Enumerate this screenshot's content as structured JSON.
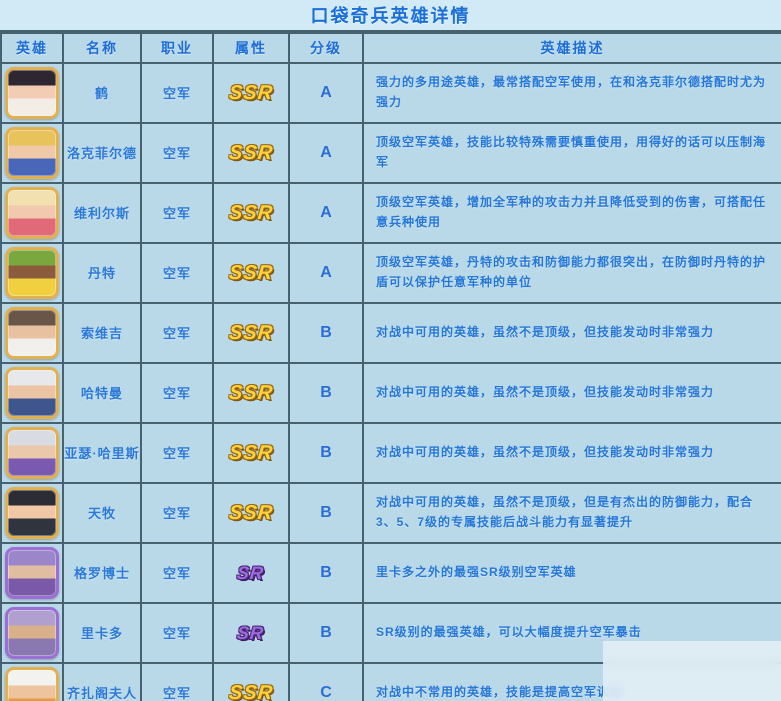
{
  "title": "口袋奇兵英雄详情",
  "table": {
    "headers": [
      "英雄",
      "名称",
      "职业",
      "属性",
      "分级",
      "英雄描述"
    ],
    "rows": [
      {
        "name": "鹤",
        "class": "空军",
        "rarity": "SSR",
        "grade": "A",
        "desc": "强力的多用途英雄，最常搭配空军使用，在和洛克菲尔德搭配时尤为强力",
        "avatar": "hero-crane",
        "avatar_border": "#e2b04e",
        "avatar_colors": [
          "#2e2630",
          "#f2cdb3",
          "#f3ede6"
        ]
      },
      {
        "name": "洛克菲尔德",
        "class": "空军",
        "rarity": "SSR",
        "grade": "A",
        "desc": "顶级空军英雄，技能比较特殊需要慎重使用，用得好的话可以压制海军",
        "avatar": "hero-rockefeller",
        "avatar_border": "#e2b04e",
        "avatar_colors": [
          "#e8c35c",
          "#f0c9a8",
          "#4a66b8"
        ]
      },
      {
        "name": "维利尔斯",
        "class": "空军",
        "rarity": "SSR",
        "grade": "A",
        "desc": "顶级空军英雄，增加全军种的攻击力并且降低受到的伤害，可搭配任意兵种使用",
        "avatar": "hero-villers",
        "avatar_border": "#e2b04e",
        "avatar_colors": [
          "#f3e0b0",
          "#f2c9ae",
          "#e06a78"
        ]
      },
      {
        "name": "丹特",
        "class": "空军",
        "rarity": "SSR",
        "grade": "A",
        "desc": "顶级空军英雄，丹特的攻击和防御能力都很突出，在防御时丹特的护盾可以保护任意军种的单位",
        "avatar": "hero-dante",
        "avatar_border": "#e2b04e",
        "avatar_colors": [
          "#7aa83e",
          "#8a5c3c",
          "#f0d03e"
        ]
      },
      {
        "name": "索维吉",
        "class": "空军",
        "rarity": "SSR",
        "grade": "B",
        "desc": "对战中可用的英雄，虽然不是顶级，但技能发动时非常强力",
        "avatar": "hero-savage",
        "avatar_border": "#e2b04e",
        "avatar_colors": [
          "#6a5648",
          "#e8c2a0",
          "#f2f0ec"
        ]
      },
      {
        "name": "哈特曼",
        "class": "空军",
        "rarity": "SSR",
        "grade": "B",
        "desc": "对战中可用的英雄，虽然不是顶级，但技能发动时非常强力",
        "avatar": "hero-hartmann",
        "avatar_border": "#e2b04e",
        "avatar_colors": [
          "#e6e8ec",
          "#eac4a4",
          "#3e568c"
        ]
      },
      {
        "name": "亚瑟·哈里斯",
        "class": "空军",
        "rarity": "SSR",
        "grade": "B",
        "desc": "对战中可用的英雄，虽然不是顶级，但技能发动时非常强力",
        "avatar": "hero-arthur-harris",
        "avatar_border": "#e2b04e",
        "avatar_colors": [
          "#d8dce2",
          "#eac8aa",
          "#7a5ab0"
        ]
      },
      {
        "name": "天牧",
        "class": "空军",
        "rarity": "SSR",
        "grade": "B",
        "desc": "对战中可用的英雄，虽然不是顶级，但是有杰出的防御能力，配合3、5、7级的专属技能后战斗能力有显著提升",
        "avatar": "hero-tianmu",
        "avatar_border": "#e2b04e",
        "avatar_colors": [
          "#2c2c34",
          "#f0c8a8",
          "#30343e"
        ]
      },
      {
        "name": "格罗博士",
        "class": "空军",
        "rarity": "SR",
        "grade": "B",
        "desc": "里卡多之外的最强SR级别空军英雄",
        "avatar": "hero-dr-gero",
        "avatar_border": "#9d6fd6",
        "avatar_colors": [
          "#9a86c8",
          "#e0bca0",
          "#7a5aa8"
        ]
      },
      {
        "name": "里卡多",
        "class": "空军",
        "rarity": "SR",
        "grade": "B",
        "desc": "SR级别的最强英雄，可以大幅度提升空军暴击",
        "avatar": "hero-ricardo",
        "avatar_border": "#9d6fd6",
        "avatar_colors": [
          "#b0a0d0",
          "#d8b08a",
          "#8a78b0"
        ]
      },
      {
        "name": "齐扎阁夫人",
        "class": "空军",
        "rarity": "SSR",
        "grade": "C",
        "desc": "对战中不常用的英雄，技能是提高空军训练",
        "avatar": "hero-madam-chizha",
        "avatar_border": "#e2b04e",
        "avatar_colors": [
          "#f2f2ee",
          "#eec49e",
          "#e89a3a"
        ]
      }
    ]
  },
  "colors": {
    "page_bg": "#b7d6e7",
    "title_bg": "#d2eaf6",
    "cell_bg": "#b9d8e8",
    "border": "#47626f",
    "text_blue": "#2578d8",
    "ssr_gold": "#ffd23e",
    "sr_purple": "#a06ae0",
    "avatar_border_gold": "#e2b04e",
    "avatar_border_purple": "#9d6fd6"
  }
}
